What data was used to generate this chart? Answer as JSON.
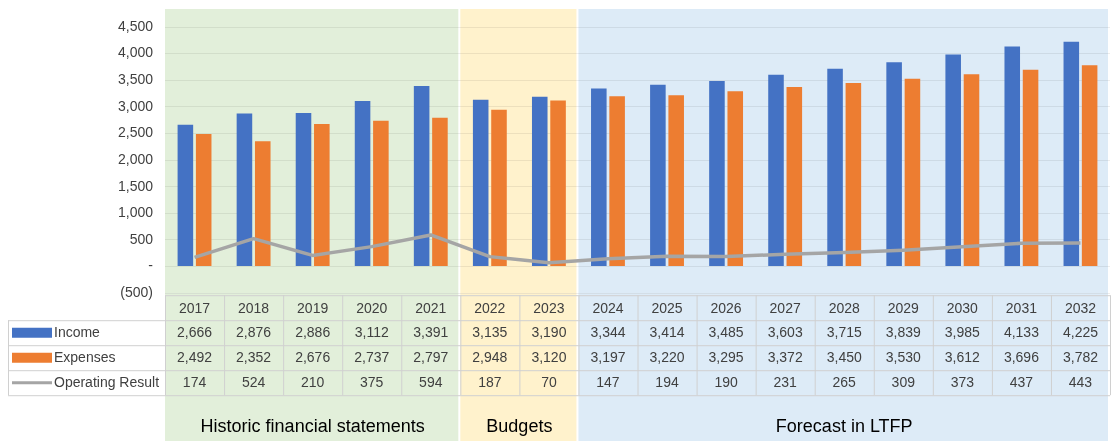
{
  "chart_data": {
    "type": "bar",
    "categories": [
      "2017",
      "2018",
      "2019",
      "2020",
      "2021",
      "2022",
      "2023",
      "2024",
      "2025",
      "2026",
      "2027",
      "2028",
      "2029",
      "2030",
      "2031",
      "2032"
    ],
    "series": [
      {
        "name": "Income",
        "color": "#4472c4",
        "values": [
          2666,
          2876,
          2886,
          3112,
          3391,
          3135,
          3190,
          3344,
          3414,
          3485,
          3603,
          3715,
          3839,
          3985,
          4133,
          4225
        ],
        "value_labels": [
          "2,666",
          "2,876",
          "2,886",
          "3,112",
          "3,391",
          "3,135",
          "3,190",
          "3,344",
          "3,414",
          "3,485",
          "3,603",
          "3,715",
          "3,839",
          "3,985",
          "4,133",
          "4,225"
        ]
      },
      {
        "name": "Expenses",
        "color": "#ed7d31",
        "values": [
          2492,
          2352,
          2676,
          2737,
          2797,
          2948,
          3120,
          3197,
          3220,
          3295,
          3372,
          3450,
          3530,
          3612,
          3696,
          3782
        ],
        "value_labels": [
          "2,492",
          "2,352",
          "2,676",
          "2,737",
          "2,797",
          "2,948",
          "3,120",
          "3,197",
          "3,220",
          "3,295",
          "3,372",
          "3,450",
          "3,530",
          "3,612",
          "3,696",
          "3,782"
        ]
      },
      {
        "name": "Operating Result",
        "type": "line",
        "color": "#a5a5a5",
        "values": [
          174,
          524,
          210,
          375,
          594,
          187,
          70,
          147,
          194,
          190,
          231,
          265,
          309,
          373,
          437,
          443
        ],
        "value_labels": [
          "174",
          "524",
          "210",
          "375",
          "594",
          "187",
          "70",
          "147",
          "194",
          "190",
          "231",
          "265",
          "309",
          "373",
          "437",
          "443"
        ]
      }
    ],
    "ylim": [
      -500,
      4500
    ],
    "yticks": [
      {
        "value": -500,
        "label": "(500)"
      },
      {
        "value": 0,
        "label": "-"
      },
      {
        "value": 500,
        "label": "500"
      },
      {
        "value": 1000,
        "label": "1,000"
      },
      {
        "value": 1500,
        "label": "1,500"
      },
      {
        "value": 2000,
        "label": "2,000"
      },
      {
        "value": 2500,
        "label": "2,500"
      },
      {
        "value": 3000,
        "label": "3,000"
      },
      {
        "value": 3500,
        "label": "3,500"
      },
      {
        "value": 4000,
        "label": "4,000"
      },
      {
        "value": 4500,
        "label": "4,500"
      }
    ],
    "bands": [
      {
        "axis": "x",
        "from": "2017",
        "to": "2021",
        "label": "Historic financial statements",
        "color": "#e2efda"
      },
      {
        "axis": "x",
        "from": "2022",
        "to": "2023",
        "label": "Budgets",
        "color": "#fff2cc"
      },
      {
        "axis": "x",
        "from": "2024",
        "to": "2032",
        "label": "Forecast in LTFP",
        "color": "#ddebf7"
      }
    ],
    "grid": "y",
    "legend": "bottom",
    "marker": "none",
    "line_style": "solid"
  }
}
